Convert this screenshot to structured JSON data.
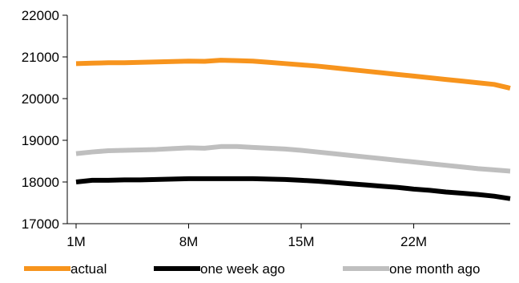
{
  "chart_data": {
    "type": "line",
    "title": "",
    "xlabel": "",
    "ylabel": "",
    "ylim": [
      17000,
      22000
    ],
    "yticks": [
      17000,
      18000,
      19000,
      20000,
      21000,
      22000
    ],
    "xlim": [
      1,
      28
    ],
    "xticks": [
      {
        "value": 1,
        "label": "1M"
      },
      {
        "value": 8,
        "label": "8M"
      },
      {
        "value": 15,
        "label": "15M"
      },
      {
        "value": 22,
        "label": "22M"
      }
    ],
    "grid": false,
    "legend_position": "bottom",
    "x": [
      1,
      2,
      3,
      4,
      5,
      6,
      7,
      8,
      9,
      10,
      11,
      12,
      13,
      14,
      15,
      16,
      17,
      18,
      19,
      20,
      21,
      22,
      23,
      24,
      25,
      26,
      27,
      28
    ],
    "series": [
      {
        "name": "actual",
        "color": "#F7941D",
        "values": [
          20840,
          20850,
          20860,
          20860,
          20870,
          20880,
          20890,
          20900,
          20895,
          20920,
          20910,
          20900,
          20870,
          20840,
          20810,
          20780,
          20740,
          20700,
          20660,
          20620,
          20580,
          20540,
          20500,
          20460,
          20420,
          20380,
          20340,
          20250
        ]
      },
      {
        "name": "one week ago",
        "color": "#000000",
        "values": [
          18000,
          18040,
          18040,
          18050,
          18050,
          18060,
          18070,
          18080,
          18080,
          18080,
          18080,
          18080,
          18070,
          18060,
          18040,
          18020,
          17990,
          17960,
          17930,
          17900,
          17870,
          17830,
          17800,
          17760,
          17730,
          17700,
          17660,
          17600
        ]
      },
      {
        "name": "one month ago",
        "color": "#BFBFBF",
        "values": [
          18680,
          18720,
          18750,
          18760,
          18770,
          18780,
          18800,
          18820,
          18810,
          18850,
          18850,
          18830,
          18810,
          18790,
          18760,
          18720,
          18680,
          18640,
          18600,
          18560,
          18520,
          18480,
          18440,
          18400,
          18360,
          18320,
          18290,
          18260
        ]
      }
    ]
  }
}
